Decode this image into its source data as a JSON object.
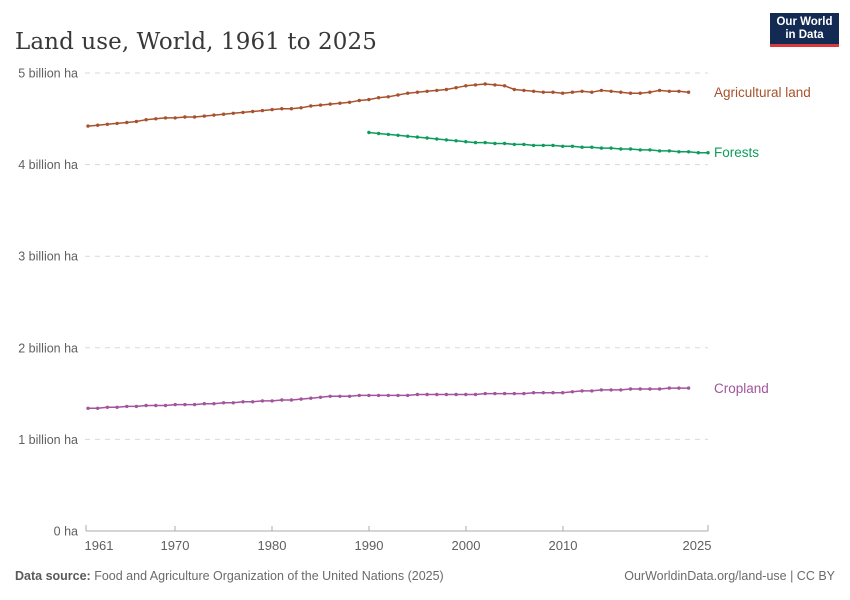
{
  "header": {
    "title": "Land use, World, 1961 to 2025"
  },
  "logo": {
    "line1": "Our World",
    "line2": "in Data"
  },
  "chart_data": {
    "type": "line",
    "title": "Land use, World, 1961 to 2025",
    "ylabel": "",
    "xlabel": "",
    "unit": "billion hectares",
    "grid": true,
    "legend_position": "right-end-labels",
    "ylim_billion_ha": [
      0,
      5
    ],
    "xlim_years": [
      1961,
      2025
    ],
    "y_ticks": [
      "5 billion ha",
      "4 billion ha",
      "3 billion ha",
      "2 billion ha",
      "1 billion ha",
      "0 ha"
    ],
    "x_ticks": [
      "1961",
      "1970",
      "1980",
      "1990",
      "2000",
      "2010",
      "2025"
    ],
    "series": [
      {
        "name": "Agricultural land",
        "color": "#A8522D",
        "start_year": 1961,
        "end_year": 2023,
        "values_billion_ha": [
          4.42,
          4.43,
          4.44,
          4.45,
          4.46,
          4.47,
          4.49,
          4.5,
          4.51,
          4.51,
          4.52,
          4.52,
          4.53,
          4.54,
          4.55,
          4.56,
          4.57,
          4.58,
          4.59,
          4.6,
          4.61,
          4.61,
          4.62,
          4.64,
          4.65,
          4.66,
          4.67,
          4.68,
          4.7,
          4.71,
          4.73,
          4.74,
          4.76,
          4.78,
          4.79,
          4.8,
          4.81,
          4.82,
          4.84,
          4.86,
          4.87,
          4.88,
          4.87,
          4.86,
          4.82,
          4.81,
          4.8,
          4.79,
          4.79,
          4.78,
          4.79,
          4.8,
          4.79,
          4.81,
          4.8,
          4.79,
          4.78,
          4.78,
          4.79,
          4.81,
          4.8,
          4.8,
          4.79
        ]
      },
      {
        "name": "Forests",
        "color": "#0D9C5D",
        "start_year": 1990,
        "end_year": 2025,
        "values_billion_ha": [
          4.35,
          4.34,
          4.33,
          4.32,
          4.31,
          4.3,
          4.29,
          4.28,
          4.27,
          4.26,
          4.25,
          4.24,
          4.24,
          4.23,
          4.23,
          4.22,
          4.22,
          4.21,
          4.21,
          4.21,
          4.2,
          4.2,
          4.19,
          4.19,
          4.18,
          4.18,
          4.17,
          4.17,
          4.16,
          4.16,
          4.15,
          4.15,
          4.14,
          4.14,
          4.13,
          4.13
        ]
      },
      {
        "name": "Cropland",
        "color": "#A2559C",
        "start_year": 1961,
        "end_year": 2023,
        "values_billion_ha": [
          1.34,
          1.34,
          1.35,
          1.35,
          1.36,
          1.36,
          1.37,
          1.37,
          1.37,
          1.38,
          1.38,
          1.38,
          1.39,
          1.39,
          1.4,
          1.4,
          1.41,
          1.41,
          1.42,
          1.42,
          1.43,
          1.43,
          1.44,
          1.45,
          1.46,
          1.47,
          1.47,
          1.47,
          1.48,
          1.48,
          1.48,
          1.48,
          1.48,
          1.48,
          1.49,
          1.49,
          1.49,
          1.49,
          1.49,
          1.49,
          1.49,
          1.5,
          1.5,
          1.5,
          1.5,
          1.5,
          1.51,
          1.51,
          1.51,
          1.51,
          1.52,
          1.53,
          1.53,
          1.54,
          1.54,
          1.54,
          1.55,
          1.55,
          1.55,
          1.55,
          1.56,
          1.56,
          1.56
        ]
      }
    ]
  },
  "footer": {
    "source_label": "Data source:",
    "source_text": " Food and Agriculture Organization of the United Nations (2025)",
    "right_text": "OurWorldinData.org/land-use | CC BY"
  }
}
